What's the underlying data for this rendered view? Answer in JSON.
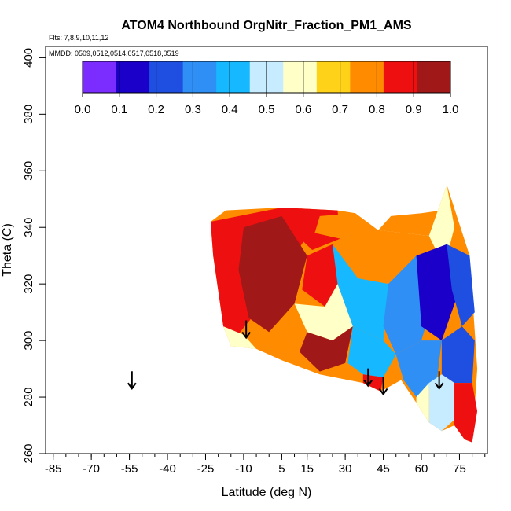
{
  "chart_data": {
    "type": "heatmap",
    "title": "ATOM4 Northbound OrgNitr_Fraction_PM1_AMS",
    "flights_label": "Flts: 7,8,9,10,11,12",
    "dates_label": "MMDD: 0509,0512,0514,0517,0518,0519",
    "xlabel": "Latitude (deg N)",
    "ylabel": "Theta (C)",
    "xlim": [
      -88,
      86
    ],
    "ylim": [
      260,
      404
    ],
    "x_ticks": [
      -85,
      -70,
      -55,
      -40,
      -25,
      -10,
      5,
      15,
      30,
      45,
      60,
      75
    ],
    "x_tick_labels": [
      "-85",
      "-70",
      "-55",
      "-40",
      "-25",
      "-10",
      "5",
      "15",
      "30",
      "45",
      "60",
      "75"
    ],
    "x_minor_step": 5,
    "y_ticks": [
      260,
      280,
      300,
      320,
      340,
      360,
      380,
      400
    ],
    "y_tick_labels": [
      "260",
      "280",
      "300",
      "320",
      "340",
      "360",
      "380",
      "400"
    ],
    "colorbar": {
      "min": 0.0,
      "max": 1.0,
      "ticks": [
        "0.0",
        "0.1",
        "0.2",
        "0.3",
        "0.4",
        "0.5",
        "0.6",
        "0.7",
        "0.8",
        "0.9",
        "1.0"
      ],
      "colors": [
        "#7b2cff",
        "#1a00c8",
        "#1f4fe0",
        "#2f8ff5",
        "#16b8ff",
        "#c8ecff",
        "#ffffc8",
        "#ffd21a",
        "#ff8c00",
        "#ee1010",
        "#a01818"
      ]
    },
    "arrows": [
      {
        "lat": -54,
        "theta": 283
      },
      {
        "lat": -9,
        "theta": 301
      },
      {
        "lat": 39,
        "theta": 284
      },
      {
        "lat": 45,
        "theta": 281
      },
      {
        "lat": 67,
        "theta": 283
      }
    ],
    "field_outline": [
      [
        -23,
        342
      ],
      [
        -17,
        346
      ],
      [
        5,
        347
      ],
      [
        27,
        346
      ],
      [
        34,
        345
      ],
      [
        43,
        339
      ],
      [
        63,
        337
      ],
      [
        70,
        355
      ],
      [
        79,
        330
      ],
      [
        82,
        290
      ],
      [
        80,
        264
      ],
      [
        77,
        265
      ],
      [
        73,
        270
      ],
      [
        68,
        268
      ],
      [
        63,
        271
      ],
      [
        58,
        278
      ],
      [
        52,
        286
      ],
      [
        44,
        282
      ],
      [
        37,
        285
      ],
      [
        20,
        288
      ],
      [
        5,
        293
      ],
      [
        -5,
        297
      ],
      [
        -15,
        298
      ],
      [
        -18,
        305
      ],
      [
        -22,
        330
      ],
      [
        -23,
        342
      ]
    ],
    "field_patches": [
      {
        "poly": [
          [
            -23,
            342
          ],
          [
            5,
            347
          ],
          [
            20,
            344
          ],
          [
            10,
            330
          ],
          [
            -5,
            310
          ],
          [
            -15,
            299
          ],
          [
            -18,
            305
          ],
          [
            -22,
            330
          ]
        ],
        "value": 0.85
      },
      {
        "poly": [
          [
            -10,
            340
          ],
          [
            5,
            344
          ],
          [
            15,
            330
          ],
          [
            10,
            313
          ],
          [
            0,
            303
          ],
          [
            -8,
            308
          ],
          [
            -12,
            325
          ]
        ],
        "value": 0.95
      },
      {
        "poly": [
          [
            5,
            347
          ],
          [
            27,
            346
          ],
          [
            28,
            336
          ],
          [
            17,
            332
          ],
          [
            10,
            338
          ]
        ],
        "value": 0.85
      },
      {
        "poly": [
          [
            15,
            330
          ],
          [
            25,
            334
          ],
          [
            30,
            318
          ],
          [
            22,
            312
          ],
          [
            13,
            318
          ]
        ],
        "value": 0.85
      },
      {
        "poly": [
          [
            28,
            336
          ],
          [
            43,
            339
          ],
          [
            52,
            338
          ],
          [
            47,
            320
          ],
          [
            35,
            322
          ]
        ],
        "value": 0.75
      },
      {
        "poly": [
          [
            20,
            344
          ],
          [
            34,
            345
          ],
          [
            28,
            336
          ],
          [
            18,
            338
          ]
        ],
        "value": 0.75
      },
      {
        "poly": [
          [
            43,
            339
          ],
          [
            63,
            337
          ],
          [
            68,
            346
          ],
          [
            60,
            345
          ],
          [
            48,
            344
          ]
        ],
        "value": 0.78
      },
      {
        "poly": [
          [
            63,
            337
          ],
          [
            70,
            355
          ],
          [
            73,
            340
          ],
          [
            69,
            326
          ]
        ],
        "value": 0.6
      },
      {
        "poly": [
          [
            25,
            334
          ],
          [
            35,
            322
          ],
          [
            47,
            320
          ],
          [
            45,
            300
          ],
          [
            33,
            305
          ],
          [
            27,
            320
          ]
        ],
        "value": 0.38
      },
      {
        "poly": [
          [
            47,
            320
          ],
          [
            58,
            330
          ],
          [
            65,
            315
          ],
          [
            60,
            300
          ],
          [
            50,
            295
          ],
          [
            45,
            305
          ]
        ],
        "value": 0.3
      },
      {
        "poly": [
          [
            58,
            330
          ],
          [
            70,
            334
          ],
          [
            75,
            318
          ],
          [
            68,
            300
          ],
          [
            60,
            305
          ]
        ],
        "value": 0.15
      },
      {
        "poly": [
          [
            70,
            334
          ],
          [
            79,
            330
          ],
          [
            81,
            310
          ],
          [
            76,
            305
          ],
          [
            72,
            318
          ]
        ],
        "value": 0.25
      },
      {
        "poly": [
          [
            10,
            313
          ],
          [
            22,
            312
          ],
          [
            27,
            320
          ],
          [
            33,
            305
          ],
          [
            25,
            300
          ],
          [
            15,
            303
          ]
        ],
        "value": 0.55
      },
      {
        "poly": [
          [
            0,
            303
          ],
          [
            10,
            313
          ],
          [
            15,
            303
          ],
          [
            10,
            297
          ],
          [
            5,
            294
          ]
        ],
        "value": 0.8
      },
      {
        "poly": [
          [
            15,
            303
          ],
          [
            25,
            300
          ],
          [
            33,
            305
          ],
          [
            30,
            292
          ],
          [
            20,
            289
          ],
          [
            12,
            296
          ]
        ],
        "value": 0.92
      },
      {
        "poly": [
          [
            33,
            305
          ],
          [
            45,
            300
          ],
          [
            50,
            295
          ],
          [
            45,
            287
          ],
          [
            37,
            288
          ],
          [
            31,
            292
          ]
        ],
        "value": 0.45
      },
      {
        "poly": [
          [
            50,
            295
          ],
          [
            60,
            300
          ],
          [
            68,
            300
          ],
          [
            66,
            285
          ],
          [
            58,
            280
          ],
          [
            53,
            286
          ]
        ],
        "value": 0.35
      },
      {
        "poly": [
          [
            68,
            300
          ],
          [
            76,
            305
          ],
          [
            81,
            300
          ],
          [
            80,
            285
          ],
          [
            73,
            285
          ],
          [
            68,
            288
          ]
        ],
        "value": 0.2
      },
      {
        "poly": [
          [
            73,
            285
          ],
          [
            80,
            285
          ],
          [
            82,
            275
          ],
          [
            80,
            264
          ],
          [
            77,
            265
          ],
          [
            73,
            270
          ]
        ],
        "value": 0.85
      },
      {
        "poly": [
          [
            63,
            285
          ],
          [
            68,
            288
          ],
          [
            73,
            285
          ],
          [
            73,
            272
          ],
          [
            68,
            268
          ],
          [
            63,
            271
          ]
        ],
        "value": 0.5
      },
      {
        "poly": [
          [
            58,
            280
          ],
          [
            63,
            285
          ],
          [
            63,
            271
          ],
          [
            58,
            278
          ]
        ],
        "value": 0.62
      },
      {
        "poly": [
          [
            37,
            288
          ],
          [
            45,
            287
          ],
          [
            44,
            282
          ],
          [
            37,
            285
          ]
        ],
        "value": 0.9
      },
      {
        "poly": [
          [
            -18,
            305
          ],
          [
            -10,
            302
          ],
          [
            -5,
            297
          ],
          [
            -15,
            298
          ]
        ],
        "value": 0.62
      },
      {
        "poly": [
          [
            -20,
            336
          ],
          [
            -16,
            340
          ],
          [
            -16,
            310
          ],
          [
            -19,
            312
          ]
        ],
        "value": 0.9
      }
    ]
  }
}
